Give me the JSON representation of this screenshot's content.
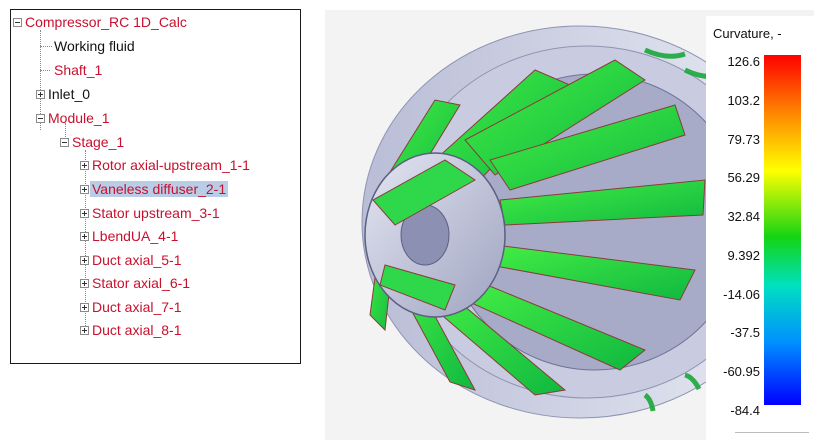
{
  "tree": {
    "root": "Compressor_RC 1D_Calc",
    "items": [
      "Working fluid",
      "Shaft_1",
      "Inlet_0",
      "Module_1",
      "Stage_1",
      "Rotor axial-upstream_1-1",
      "Vaneless diffuser_2-1",
      "Stator upstream_3-1",
      "LbendUA_4-1",
      "Duct axial_5-1",
      "Stator axial_6-1",
      "Duct axial_7-1",
      "Duct axial_8-1"
    ],
    "selected": "Vaneless diffuser_2-1"
  },
  "legend": {
    "title": "Curvature, -",
    "ticks": [
      "126.6",
      "103.2",
      "79.73",
      "56.29",
      "32.84",
      "9.392",
      "-14.06",
      "-37.5",
      "-60.95",
      "-84.4"
    ],
    "max_color": "#ff0000",
    "min_color": "#0000ff"
  },
  "colors": {
    "tree_red": "#c8102e",
    "selection": "#b9cde6"
  }
}
